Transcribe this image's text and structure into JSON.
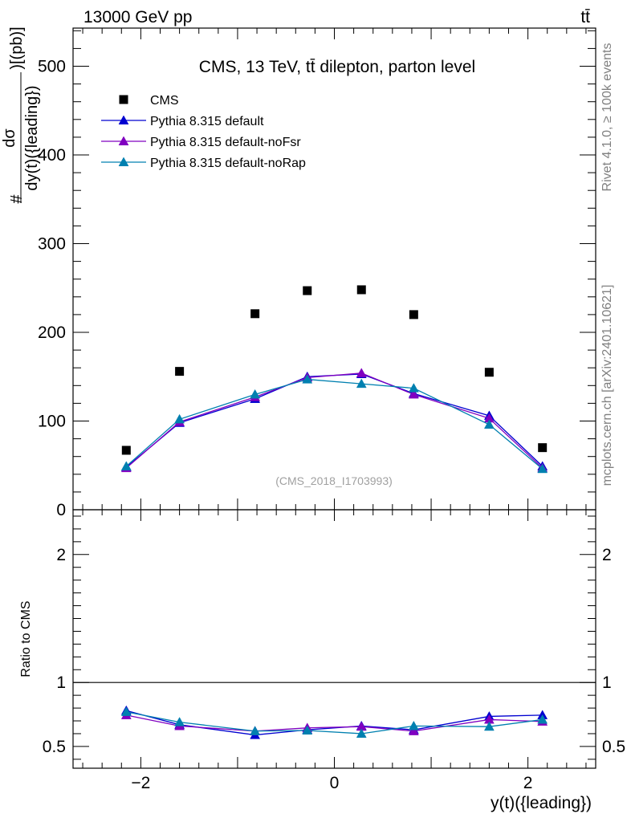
{
  "header": {
    "energy": "13000 GeV pp",
    "process": "tt̄"
  },
  "side": {
    "rivet": "Rivet 4.1.0, ≥ 100k events",
    "source": "mcplots.cern.ch [arXiv:2401.10621]"
  },
  "chart_data": {
    "type": "scatter",
    "title": "CMS, 13 TeV, tt̄ dilepton, parton level",
    "analysis_tag": "(CMS_2018_I1703993)",
    "xlabel": "y(t)({leading})",
    "ylabel_num": "dσ",
    "ylabel_den": "dy(t)({leading})",
    "ylabel_prefix": "#",
    "ylabel_unit": ")[(pb)]",
    "ratio_ylabel": "Ratio to CMS",
    "xlim": [
      -2.7,
      2.7
    ],
    "ylim": [
      0,
      543
    ],
    "ratio_ylim": [
      0.33,
      2.35
    ],
    "x_ticks": [
      -2,
      0,
      2
    ],
    "y_ticks": [
      0,
      100,
      200,
      300,
      400,
      500
    ],
    "ratio_ticks": [
      0.5,
      1,
      2
    ],
    "x": [
      -2.15,
      -1.6,
      -0.82,
      -0.28,
      0.28,
      0.82,
      1.6,
      2.15
    ],
    "data": {
      "name": "CMS",
      "color": "#000000",
      "values": [
        67,
        156,
        221,
        247,
        248,
        220,
        155,
        70
      ]
    },
    "series": [
      {
        "name": "Pythia 8.315 default",
        "color": "#0000d0",
        "values": [
          48,
          98,
          125,
          150,
          153,
          131,
          106,
          49
        ],
        "errors": [
          2,
          3,
          3,
          4,
          4,
          3,
          3,
          2
        ],
        "ratio": [
          0.78,
          0.67,
          0.59,
          0.63,
          0.66,
          0.63,
          0.735,
          0.745
        ],
        "ratio_errors": [
          0.03,
          0.03,
          0.03,
          0.03,
          0.03,
          0.03,
          0.03,
          0.03
        ]
      },
      {
        "name": "Pythia 8.315 default-noFsr",
        "color": "#8000c0",
        "values": [
          47,
          99,
          127,
          149,
          154,
          130,
          103,
          47
        ],
        "errors": [
          2,
          3,
          3,
          4,
          4,
          3,
          3,
          2
        ],
        "ratio": [
          0.745,
          0.66,
          0.62,
          0.645,
          0.655,
          0.62,
          0.71,
          0.695
        ],
        "ratio_errors": [
          0.03,
          0.03,
          0.03,
          0.03,
          0.03,
          0.03,
          0.03,
          0.03
        ]
      },
      {
        "name": "Pythia 8.315 default-noRap",
        "color": "#0080b0",
        "values": [
          49,
          102,
          130,
          147,
          142,
          137,
          96,
          46
        ],
        "errors": [
          2,
          3,
          3,
          4,
          4,
          3,
          3,
          2
        ],
        "ratio": [
          0.77,
          0.69,
          0.62,
          0.625,
          0.6,
          0.66,
          0.655,
          0.71
        ],
        "ratio_errors": [
          0.03,
          0.03,
          0.03,
          0.03,
          0.03,
          0.03,
          0.03,
          0.03
        ]
      }
    ]
  }
}
